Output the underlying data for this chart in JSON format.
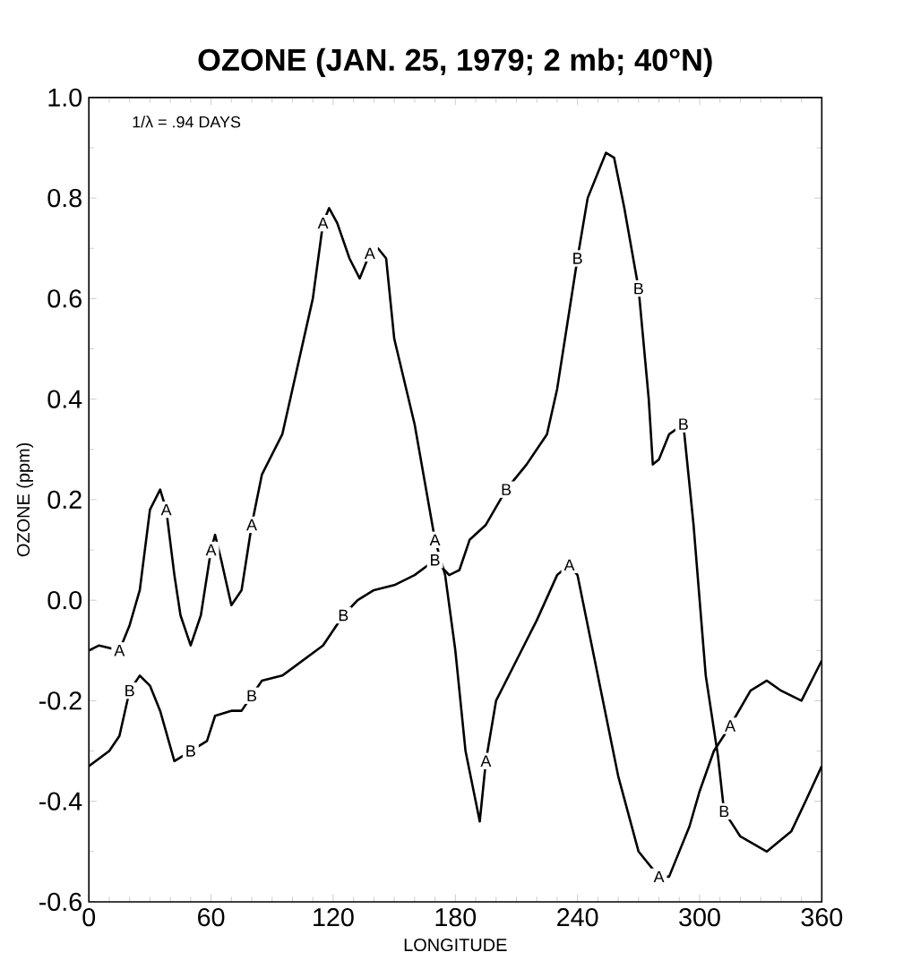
{
  "chart_data": {
    "type": "line",
    "title": "OZONE (JAN. 25, 1979; 2 mb; 40°N)",
    "xlabel": "LONGITUDE",
    "ylabel": "OZONE (ppm)",
    "annotations": [
      "1/λ = .94 DAYS"
    ],
    "xlim": [
      0,
      360
    ],
    "ylim": [
      -0.6,
      1.0
    ],
    "xticks": [
      0,
      60,
      120,
      180,
      240,
      300,
      360
    ],
    "yticks": [
      -0.6,
      -0.4,
      -0.2,
      {
        "value": 0,
        "label": "0.0"
      },
      0.2,
      0.4,
      0.6,
      0.8,
      {
        "value": 1,
        "label": "1.0"
      }
    ],
    "grid": false,
    "legend": false,
    "line_style": "solid",
    "series": [
      {
        "name": "A",
        "color": "#000000",
        "x": [
          0,
          5,
          15,
          20,
          25,
          30,
          35,
          38,
          42,
          45,
          50,
          55,
          60,
          62,
          65,
          70,
          75,
          80,
          85,
          95,
          100,
          110,
          115,
          118,
          122,
          128,
          133,
          138,
          142,
          146,
          150,
          160,
          170,
          175,
          180,
          185,
          192,
          195,
          200,
          210,
          220,
          230,
          236,
          240,
          250,
          260,
          270,
          280,
          285,
          295,
          300,
          307,
          315,
          325,
          333,
          340,
          350,
          360
        ],
        "values": [
          -0.1,
          -0.09,
          -0.1,
          -0.05,
          0.02,
          0.18,
          0.22,
          0.18,
          0.05,
          -0.03,
          -0.09,
          -0.03,
          0.1,
          0.13,
          0.08,
          -0.01,
          0.02,
          0.15,
          0.25,
          0.33,
          0.42,
          0.6,
          0.75,
          0.78,
          0.75,
          0.68,
          0.64,
          0.69,
          0.7,
          0.68,
          0.52,
          0.35,
          0.12,
          0.05,
          -0.1,
          -0.3,
          -0.44,
          -0.32,
          -0.2,
          -0.12,
          -0.04,
          0.05,
          0.07,
          0.05,
          -0.15,
          -0.35,
          -0.5,
          -0.55,
          -0.55,
          -0.45,
          -0.38,
          -0.3,
          -0.25,
          -0.18,
          -0.16,
          -0.18,
          -0.2,
          -0.12
        ]
      },
      {
        "name": "B",
        "color": "#000000",
        "x": [
          0,
          10,
          15,
          20,
          25,
          30,
          35,
          42,
          50,
          58,
          62,
          70,
          75,
          80,
          85,
          95,
          105,
          115,
          125,
          132,
          140,
          150,
          160,
          170,
          177,
          182,
          187,
          195,
          205,
          215,
          225,
          230,
          235,
          240,
          245,
          254,
          258,
          263,
          270,
          275,
          277,
          280,
          285,
          292,
          297,
          300,
          303,
          309,
          312,
          320,
          333,
          345,
          352,
          360
        ],
        "values": [
          -0.33,
          -0.3,
          -0.27,
          -0.18,
          -0.15,
          -0.17,
          -0.22,
          -0.32,
          -0.3,
          -0.28,
          -0.23,
          -0.22,
          -0.22,
          -0.19,
          -0.16,
          -0.15,
          -0.12,
          -0.09,
          -0.03,
          0.0,
          0.02,
          0.03,
          0.05,
          0.08,
          0.05,
          0.06,
          0.12,
          0.15,
          0.22,
          0.27,
          0.33,
          0.42,
          0.55,
          0.68,
          0.8,
          0.89,
          0.88,
          0.78,
          0.62,
          0.4,
          0.27,
          0.28,
          0.33,
          0.35,
          0.15,
          0.0,
          -0.15,
          -0.31,
          -0.42,
          -0.47,
          -0.5,
          -0.46,
          -0.4,
          -0.33
        ]
      }
    ]
  }
}
